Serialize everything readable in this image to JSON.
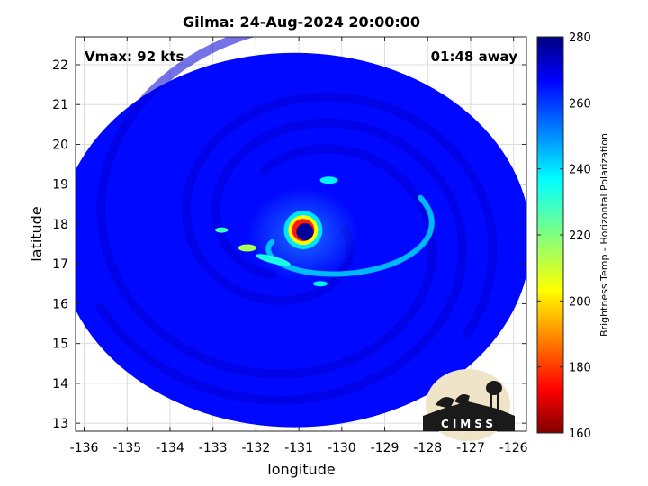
{
  "chart_data": {
    "type": "heatmap",
    "title": "Gilma: 24-Aug-2024 20:00:00",
    "xlabel": "longitude",
    "ylabel": "latitude",
    "xlim": [
      -136.2,
      -125.7
    ],
    "ylim": [
      12.8,
      22.7
    ],
    "xticks": [
      -136,
      -135,
      -134,
      -133,
      -132,
      -131,
      -130,
      -129,
      -128,
      -127,
      -126
    ],
    "yticks": [
      13,
      14,
      15,
      16,
      17,
      18,
      19,
      20,
      21,
      22
    ],
    "grid": true,
    "annotations": {
      "left": "Vmax: 92 kts",
      "right": "01:48 away"
    },
    "storm": {
      "name": "Gilma",
      "center": [
        -130.9,
        17.85
      ],
      "eye_radius_deg": 0.22,
      "max_wind_kts": 92
    },
    "swath": {
      "center": [
        -131.1,
        17.6
      ],
      "radius_x_deg": 5.5,
      "radius_y_deg": 4.7,
      "background_tb": 264
    },
    "colorbar": {
      "label": "Brightness Temp - Horizontal Polarization",
      "range": [
        160,
        280
      ],
      "ticks": [
        160,
        180,
        200,
        220,
        240,
        260,
        280
      ],
      "colormap": "jet"
    },
    "logo": "CIMSS"
  }
}
